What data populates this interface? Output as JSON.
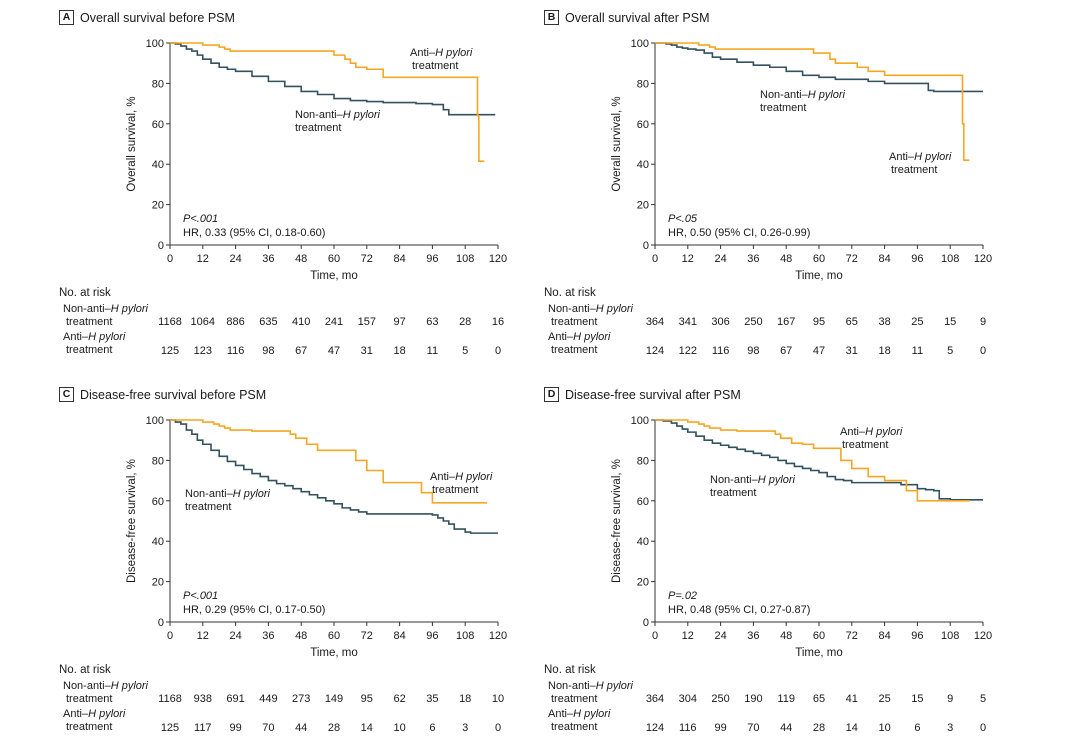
{
  "colors": {
    "non_anti": "#33515f",
    "anti": "#f5a623",
    "axis": "#333333"
  },
  "risk_title": "No. at risk",
  "chart_data": [
    {
      "id": "a",
      "type": "line",
      "panel_label": "A",
      "title": "Overall survival before PSM",
      "xlabel": "Time, mo",
      "ylabel": "Overall survival, %",
      "xlim": [
        0,
        120
      ],
      "ylim": [
        0,
        100
      ],
      "xticks": [
        0,
        12,
        24,
        36,
        48,
        60,
        72,
        84,
        96,
        108,
        120
      ],
      "yticks": [
        0,
        20,
        40,
        60,
        80,
        100
      ],
      "stat_p": "P<.001",
      "stat_hr": "HR, 0.33 (95% CI, 0.18-0.60)",
      "series": [
        {
          "name": "Non-anti-H pylori treatment",
          "name_pre": "Non-anti–",
          "name_it": "H pylori",
          "name_post": "treatment",
          "key": "non_anti",
          "x": [
            0,
            2,
            4,
            6,
            8,
            10,
            12,
            15,
            18,
            21,
            24,
            30,
            36,
            42,
            48,
            54,
            60,
            66,
            72,
            78,
            84,
            90,
            96,
            100,
            102,
            110,
            119
          ],
          "y": [
            100,
            99.5,
            98.5,
            97,
            96,
            94,
            92,
            90,
            88,
            87,
            86,
            83.5,
            81,
            78.5,
            76,
            74.5,
            72.5,
            71.5,
            71,
            70.5,
            70.5,
            70,
            69.5,
            67,
            64.5,
            64.5,
            64.5
          ]
        },
        {
          "name": "Anti-H pylori treatment",
          "name_pre": "Anti–",
          "name_it": "H pylori",
          "name_post": "treatment",
          "key": "anti",
          "x": [
            0,
            6,
            12,
            16,
            18,
            20,
            22,
            24,
            54,
            60,
            64,
            66,
            68,
            72,
            78,
            112,
            112.5,
            113,
            115
          ],
          "y": [
            100,
            100,
            99,
            99,
            98,
            97,
            96,
            96,
            96,
            94,
            92,
            90,
            88,
            87,
            83,
            83,
            64,
            41.5,
            41.5
          ]
        }
      ],
      "risk": [
        {
          "label_pre": "Non-anti–",
          "label_it": "H pylori",
          "label_post": "treatment",
          "values": [
            1168,
            1064,
            886,
            635,
            410,
            241,
            157,
            97,
            63,
            28,
            16
          ]
        },
        {
          "label_pre": "Anti–",
          "label_it": "H pylori",
          "label_post": "treatment",
          "values": [
            125,
            123,
            116,
            98,
            67,
            47,
            31,
            18,
            11,
            5,
            0
          ]
        }
      ]
    },
    {
      "id": "b",
      "type": "line",
      "panel_label": "B",
      "title": "Overall survival after PSM",
      "xlabel": "Time, mo",
      "ylabel": "Overall survival, %",
      "xlim": [
        0,
        120
      ],
      "ylim": [
        0,
        100
      ],
      "xticks": [
        0,
        12,
        24,
        36,
        48,
        60,
        72,
        84,
        96,
        108,
        120
      ],
      "yticks": [
        0,
        20,
        40,
        60,
        80,
        100
      ],
      "stat_p": "P<.05",
      "stat_hr": "HR, 0.50 (95% CI, 0.26-0.99)",
      "series": [
        {
          "name": "Non-anti-H pylori treatment",
          "name_pre": "Non-anti–",
          "name_it": "H pylori",
          "name_post": "treatment",
          "key": "non_anti",
          "x": [
            0,
            4,
            6,
            8,
            10,
            12,
            15,
            18,
            21,
            24,
            30,
            36,
            42,
            48,
            54,
            60,
            66,
            72,
            78,
            84,
            96,
            100,
            102,
            110,
            120
          ],
          "y": [
            100,
            99.5,
            99,
            98,
            97.5,
            97,
            96.5,
            95,
            93,
            92,
            90.5,
            89,
            88,
            86,
            84,
            83,
            82,
            82,
            81,
            80,
            80,
            76.5,
            76,
            76,
            76
          ]
        },
        {
          "name": "Anti-H pylori treatment",
          "name_pre": "Anti–",
          "name_it": "H pylori",
          "name_post": "treatment",
          "key": "anti",
          "x": [
            0,
            12,
            16,
            18,
            20,
            22,
            24,
            54,
            58,
            62,
            64,
            66,
            70,
            74,
            78,
            84,
            112,
            112.5,
            113,
            115
          ],
          "y": [
            100,
            100,
            99,
            99,
            98,
            97,
            97,
            97,
            95,
            95,
            92,
            90,
            90,
            88,
            86,
            84,
            84,
            60,
            42,
            42
          ]
        }
      ],
      "risk": [
        {
          "label_pre": "Non-anti–",
          "label_it": "H pylori",
          "label_post": "treatment",
          "values": [
            364,
            341,
            306,
            250,
            167,
            95,
            65,
            38,
            25,
            15,
            9
          ]
        },
        {
          "label_pre": "Anti–",
          "label_it": "H pylori",
          "label_post": "treatment",
          "values": [
            124,
            122,
            116,
            98,
            67,
            47,
            31,
            18,
            11,
            5,
            0
          ]
        }
      ]
    },
    {
      "id": "c",
      "type": "line",
      "panel_label": "C",
      "title": "Disease-free survival before PSM",
      "xlabel": "Time, mo",
      "ylabel": "Disease-free survival, %",
      "xlim": [
        0,
        120
      ],
      "ylim": [
        0,
        100
      ],
      "xticks": [
        0,
        12,
        24,
        36,
        48,
        60,
        72,
        84,
        96,
        108,
        120
      ],
      "yticks": [
        0,
        20,
        40,
        60,
        80,
        100
      ],
      "stat_p": "P<.001",
      "stat_hr": "HR, 0.29 (95% CI, 0.17-0.50)",
      "series": [
        {
          "name": "Non-anti-H pylori treatment",
          "name_pre": "Non-anti–",
          "name_it": "H pylori",
          "name_post": "treatment",
          "key": "non_anti",
          "x": [
            0,
            2,
            4,
            6,
            8,
            10,
            12,
            15,
            18,
            21,
            24,
            27,
            30,
            33,
            36,
            39,
            42,
            45,
            48,
            51,
            54,
            57,
            60,
            63,
            66,
            69,
            72,
            78,
            84,
            90,
            96,
            98,
            100,
            102,
            104,
            108,
            110,
            120
          ],
          "y": [
            100,
            99,
            98,
            95,
            93,
            90,
            88,
            85,
            82,
            79.5,
            77.5,
            75.5,
            73.5,
            72,
            70,
            68.5,
            67.5,
            66,
            64.5,
            63,
            61.5,
            60,
            58.5,
            56.5,
            55.5,
            54.5,
            53.5,
            53.5,
            53.5,
            53.5,
            53,
            51.5,
            50,
            48.5,
            46,
            44.5,
            44,
            44
          ]
        },
        {
          "name": "Anti-H pylori treatment",
          "name_pre": "Anti–",
          "name_it": "H pylori",
          "name_post": "treatment",
          "key": "anti",
          "x": [
            0,
            6,
            12,
            16,
            18,
            20,
            22,
            24,
            30,
            36,
            44,
            46,
            50,
            54,
            66,
            68,
            72,
            78,
            90,
            92,
            96,
            100,
            108,
            116
          ],
          "y": [
            100,
            100,
            99,
            98,
            97,
            96,
            95,
            95,
            94.5,
            94.5,
            93,
            91,
            88,
            85,
            85,
            80,
            75,
            69,
            69,
            64,
            59,
            59,
            59,
            59
          ]
        }
      ],
      "risk": [
        {
          "label_pre": "Non-anti–",
          "label_it": "H pylori",
          "label_post": "treatment",
          "values": [
            1168,
            938,
            691,
            449,
            273,
            149,
            95,
            62,
            35,
            18,
            10
          ]
        },
        {
          "label_pre": "Anti–",
          "label_it": "H pylori",
          "label_post": "treatment",
          "values": [
            125,
            117,
            99,
            70,
            44,
            28,
            14,
            10,
            6,
            3,
            0
          ]
        }
      ]
    },
    {
      "id": "d",
      "type": "line",
      "panel_label": "D",
      "title": "Disease-free survival after PSM",
      "xlabel": "Time, mo",
      "ylabel": "Disease-free survival, %",
      "xlim": [
        0,
        120
      ],
      "ylim": [
        0,
        100
      ],
      "xticks": [
        0,
        12,
        24,
        36,
        48,
        60,
        72,
        84,
        96,
        108,
        120
      ],
      "yticks": [
        0,
        20,
        40,
        60,
        80,
        100
      ],
      "stat_p": "P=.02",
      "stat_hr": "HR, 0.48 (95% CI, 0.27-0.87)",
      "series": [
        {
          "name": "Non-anti-H pylori treatment",
          "name_pre": "Non-anti–",
          "name_it": "H pylori",
          "name_post": "treatment",
          "key": "non_anti",
          "x": [
            0,
            3,
            6,
            8,
            10,
            12,
            15,
            18,
            21,
            24,
            27,
            30,
            33,
            36,
            39,
            42,
            45,
            48,
            51,
            54,
            57,
            60,
            63,
            66,
            69,
            72,
            78,
            84,
            90,
            96,
            99,
            102,
            104,
            108,
            112,
            120
          ],
          "y": [
            100,
            99.5,
            98.5,
            97,
            95.5,
            94,
            92,
            90,
            88.5,
            87.5,
            86.5,
            85.5,
            84.5,
            83.5,
            82.5,
            81.5,
            80,
            78.5,
            77,
            76,
            75,
            74,
            72,
            70.5,
            70,
            69,
            69,
            69,
            68,
            66,
            65.5,
            65,
            61,
            60.5,
            60.5,
            60.5
          ]
        },
        {
          "name": "Anti-H pylori treatment",
          "name_pre": "Anti–",
          "name_it": "H pylori",
          "name_post": "treatment",
          "key": "anti",
          "x": [
            0,
            6,
            12,
            16,
            18,
            20,
            22,
            24,
            30,
            36,
            44,
            46,
            50,
            54,
            58,
            60,
            66,
            68,
            72,
            78,
            84,
            90,
            92,
            96,
            100,
            108,
            115
          ],
          "y": [
            100,
            100,
            99,
            98,
            97,
            96,
            96,
            95,
            94.5,
            94.5,
            93,
            91,
            88.5,
            88,
            86,
            86,
            86,
            80,
            76,
            72,
            70,
            70,
            65,
            60,
            60,
            60,
            60
          ]
        }
      ],
      "risk": [
        {
          "label_pre": "Non-anti–",
          "label_it": "H pylori",
          "label_post": "treatment",
          "values": [
            364,
            304,
            250,
            190,
            119,
            65,
            41,
            25,
            15,
            9,
            5
          ]
        },
        {
          "label_pre": "Anti–",
          "label_it": "H pylori",
          "label_post": "treatment",
          "values": [
            124,
            116,
            99,
            70,
            44,
            28,
            14,
            10,
            6,
            3,
            0
          ]
        }
      ]
    }
  ]
}
